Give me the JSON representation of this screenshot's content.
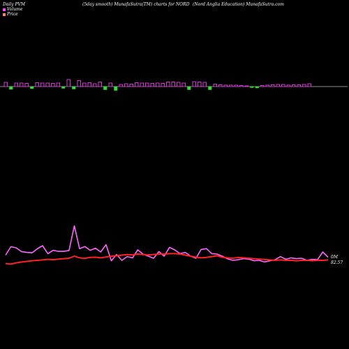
{
  "header": {
    "left": "Daily PVM",
    "middle": "(5day smooth) MunafaSutra(TM) charts for NORD",
    "right": "(Nord Anglia  Education) MunafaSutra.com"
  },
  "legend": {
    "volume_label": "Volume",
    "price_label": "Price",
    "volume_color": "#ff44ff",
    "price_color": "#ff8844"
  },
  "chart_data": {
    "type": "line",
    "bars": {
      "up_color": "#dd33dd",
      "down_color": "#33dd33",
      "values": [
        1.2,
        -0.8,
        1.0,
        1.0,
        0.9,
        -0.6,
        1.1,
        1.0,
        1.0,
        0.9,
        1.0,
        -0.5,
        2.0,
        -0.7,
        1.7,
        1.0,
        1.1,
        0.8,
        1.3,
        -0.9,
        1.0,
        -1.1,
        0.6,
        0.8,
        0.7,
        1.1,
        1.0,
        1.0,
        0.9,
        1.0,
        0.9,
        1.3,
        1.3,
        1.2,
        1.0,
        -0.9,
        1.4,
        1.3,
        1.2,
        -0.9,
        0.7,
        0.5,
        0.4,
        0.4,
        0.4,
        0.3,
        0.2,
        -0.3,
        -0.4,
        0.3,
        0.4,
        0.5,
        0.6,
        0.6,
        0.4,
        0.5,
        0.5,
        0.6,
        0.8
      ]
    },
    "series": [
      {
        "color": "#ff66ff",
        "values": [
          0.55,
          0.95,
          0.9,
          0.72,
          0.68,
          0.66,
          0.85,
          1.0,
          0.62,
          0.78,
          0.73,
          0.73,
          0.77,
          1.95,
          0.86,
          0.96,
          0.78,
          0.88,
          0.7,
          1.05,
          0.28,
          0.58,
          0.3,
          0.48,
          0.42,
          0.8,
          0.6,
          0.5,
          0.4,
          0.72,
          0.5,
          0.92,
          0.8,
          0.62,
          0.68,
          0.5,
          0.4,
          0.82,
          0.86,
          0.62,
          0.6,
          0.5,
          0.37,
          0.3,
          0.33,
          0.38,
          0.36,
          0.28,
          0.3,
          0.22,
          0.28,
          0.33,
          0.48,
          0.35,
          0.42,
          0.38,
          0.4,
          0.3,
          0.35,
          0.33,
          0.7,
          0.45
        ]
      },
      {
        "color": "#ff2222",
        "values": [
          0.15,
          0.12,
          0.18,
          0.22,
          0.25,
          0.28,
          0.3,
          0.32,
          0.35,
          0.33,
          0.36,
          0.38,
          0.4,
          0.5,
          0.42,
          0.4,
          0.44,
          0.45,
          0.42,
          0.46,
          0.5,
          0.52,
          0.55,
          0.58,
          0.56,
          0.6,
          0.58,
          0.56,
          0.58,
          0.6,
          0.6,
          0.62,
          0.62,
          0.6,
          0.55,
          0.5,
          0.45,
          0.42,
          0.44,
          0.48,
          0.52,
          0.45,
          0.42,
          0.4,
          0.44,
          0.42,
          0.4,
          0.38,
          0.36,
          0.34,
          0.32,
          0.3,
          0.32,
          0.3,
          0.3,
          0.28,
          0.3,
          0.3,
          0.28,
          0.3,
          0.3,
          0.32
        ]
      }
    ],
    "annotations": [
      "0M",
      "82.57"
    ]
  }
}
